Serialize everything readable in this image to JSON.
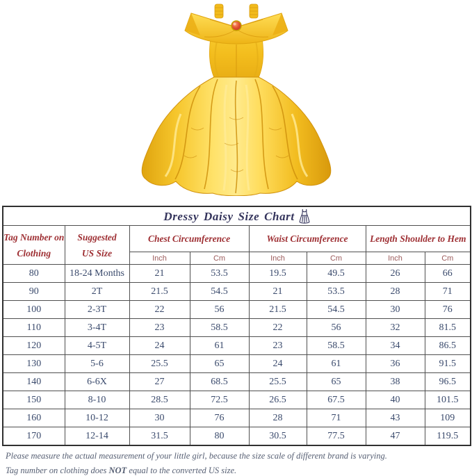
{
  "product_photo": {
    "description": "yellow off-shoulder layered princess ball gown with red gem brooch",
    "colors": {
      "base": "#F4BE1E",
      "highlight": "#FFE77E",
      "shadow": "#D8990C",
      "deep_shadow": "#CE8F0C",
      "gem_red": "#D9472E"
    }
  },
  "size_chart": {
    "title": "Dressy Daisy Size Chart",
    "title_icon": "dress-icon",
    "columns": [
      {
        "line1": "Tag Number on",
        "line2": "Clothing"
      },
      {
        "line1": "Suggested",
        "line2": "US Size"
      },
      {
        "label": "Chest Circumference"
      },
      {
        "label": "Waist Circumference"
      },
      {
        "label": "Length Shoulder to Hem"
      }
    ],
    "unit_labels": [
      "Inch",
      "Cm",
      "Inch",
      "Cm",
      "Inch",
      "Cm"
    ]
  },
  "chart_data": {
    "type": "table",
    "title": "Dressy Daisy Size Chart",
    "columns": [
      "Tag Number on Clothing",
      "Suggested US Size",
      "Chest Circumference (Inch)",
      "Chest Circumference (Cm)",
      "Waist Circumference (Inch)",
      "Waist Circumference (Cm)",
      "Length Shoulder to Hem (Inch)",
      "Length Shoulder to Hem (Cm)"
    ],
    "rows": [
      [
        "80",
        "18-24 Months",
        "21",
        "53.5",
        "19.5",
        "49.5",
        "26",
        "66"
      ],
      [
        "90",
        "2T",
        "21.5",
        "54.5",
        "21",
        "53.5",
        "28",
        "71"
      ],
      [
        "100",
        "2-3T",
        "22",
        "56",
        "21.5",
        "54.5",
        "30",
        "76"
      ],
      [
        "110",
        "3-4T",
        "23",
        "58.5",
        "22",
        "56",
        "32",
        "81.5"
      ],
      [
        "120",
        "4-5T",
        "24",
        "61",
        "23",
        "58.5",
        "34",
        "86.5"
      ],
      [
        "130",
        "5-6",
        "25.5",
        "65",
        "24",
        "61",
        "36",
        "91.5"
      ],
      [
        "140",
        "6-6X",
        "27",
        "68.5",
        "25.5",
        "65",
        "38",
        "96.5"
      ],
      [
        "150",
        "8-10",
        "28.5",
        "72.5",
        "26.5",
        "67.5",
        "40",
        "101.5"
      ],
      [
        "160",
        "10-12",
        "30",
        "76",
        "28",
        "71",
        "43",
        "109"
      ],
      [
        "170",
        "12-14",
        "31.5",
        "80",
        "30.5",
        "77.5",
        "47",
        "119.5"
      ]
    ]
  },
  "notes": {
    "line1": "Please measure the actual measurement of your little girl, because the size scale of different brand is varying.",
    "line2_prefix": "Tag number on clothing does ",
    "line2_bold": "NOT",
    "line2_suffix": " equal to the converted US size."
  },
  "colors": {
    "title_navy": "#34345C",
    "header_maroon": "#9E2F33",
    "unit_maroon": "#9B5A5A",
    "data_navy": "#3A4A6C",
    "note_gray": "#565F73",
    "border_outer": "#303030",
    "border_inner": "#4F4F4F",
    "background": "#FFFFFF"
  }
}
